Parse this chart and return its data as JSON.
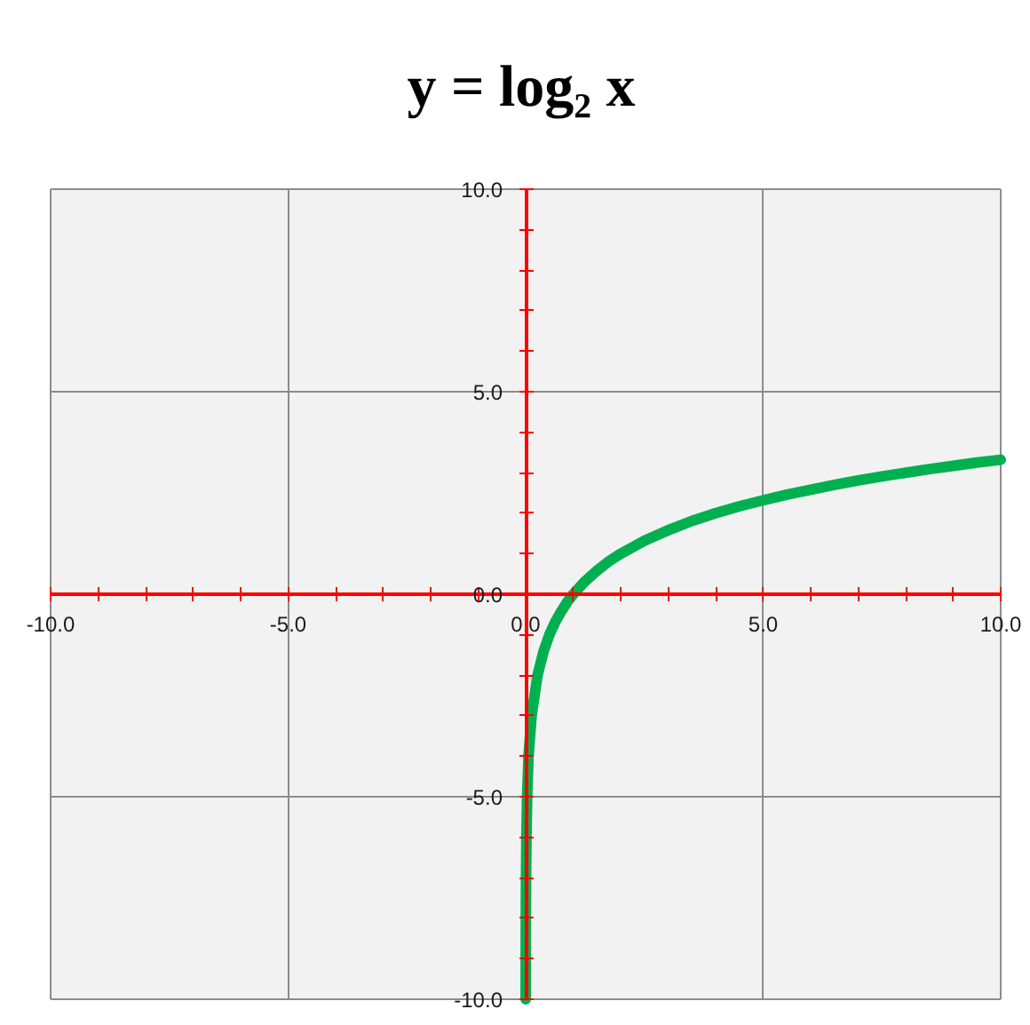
{
  "chart_data": {
    "type": "line",
    "title": "y = log₂ x",
    "x": [
      0.001,
      0.002,
      0.004,
      0.008,
      0.016,
      0.031,
      0.06,
      0.125,
      0.25,
      0.375,
      0.5,
      0.625,
      0.75,
      0.875,
      1,
      1.25,
      1.5,
      1.75,
      2,
      2.5,
      3,
      3.5,
      4,
      4.5,
      5,
      5.5,
      6,
      6.5,
      7,
      7.5,
      8,
      8.5,
      9,
      9.5,
      10
    ],
    "series": [
      {
        "color": "#00b050",
        "values": [
          -10,
          -9,
          -8,
          -7,
          -6,
          -5,
          -4,
          -3,
          -2,
          -1.42,
          -1,
          -0.68,
          -0.42,
          -0.19,
          0,
          0.32,
          0.58,
          0.81,
          1,
          1.32,
          1.58,
          1.81,
          2,
          2.17,
          2.32,
          2.46,
          2.58,
          2.7,
          2.81,
          2.91,
          3,
          3.09,
          3.17,
          3.25,
          3.32
        ]
      }
    ],
    "xlim": [
      -10,
      10
    ],
    "ylim": [
      -10,
      10
    ],
    "xticks": [
      {
        "value": -10,
        "label": "-10.0"
      },
      {
        "value": -5,
        "label": "-5.0"
      },
      {
        "value": 0,
        "label": "0.0"
      },
      {
        "value": 5,
        "label": "5.0"
      },
      {
        "value": 10,
        "label": "10.0"
      }
    ],
    "yticks": [
      {
        "value": -10,
        "label": "-10.0"
      },
      {
        "value": -5,
        "label": "-5.0"
      },
      {
        "value": 0,
        "label": "0.0"
      },
      {
        "value": 5,
        "label": "5.0"
      },
      {
        "value": 10,
        "label": "10.0"
      }
    ],
    "grid": true
  }
}
